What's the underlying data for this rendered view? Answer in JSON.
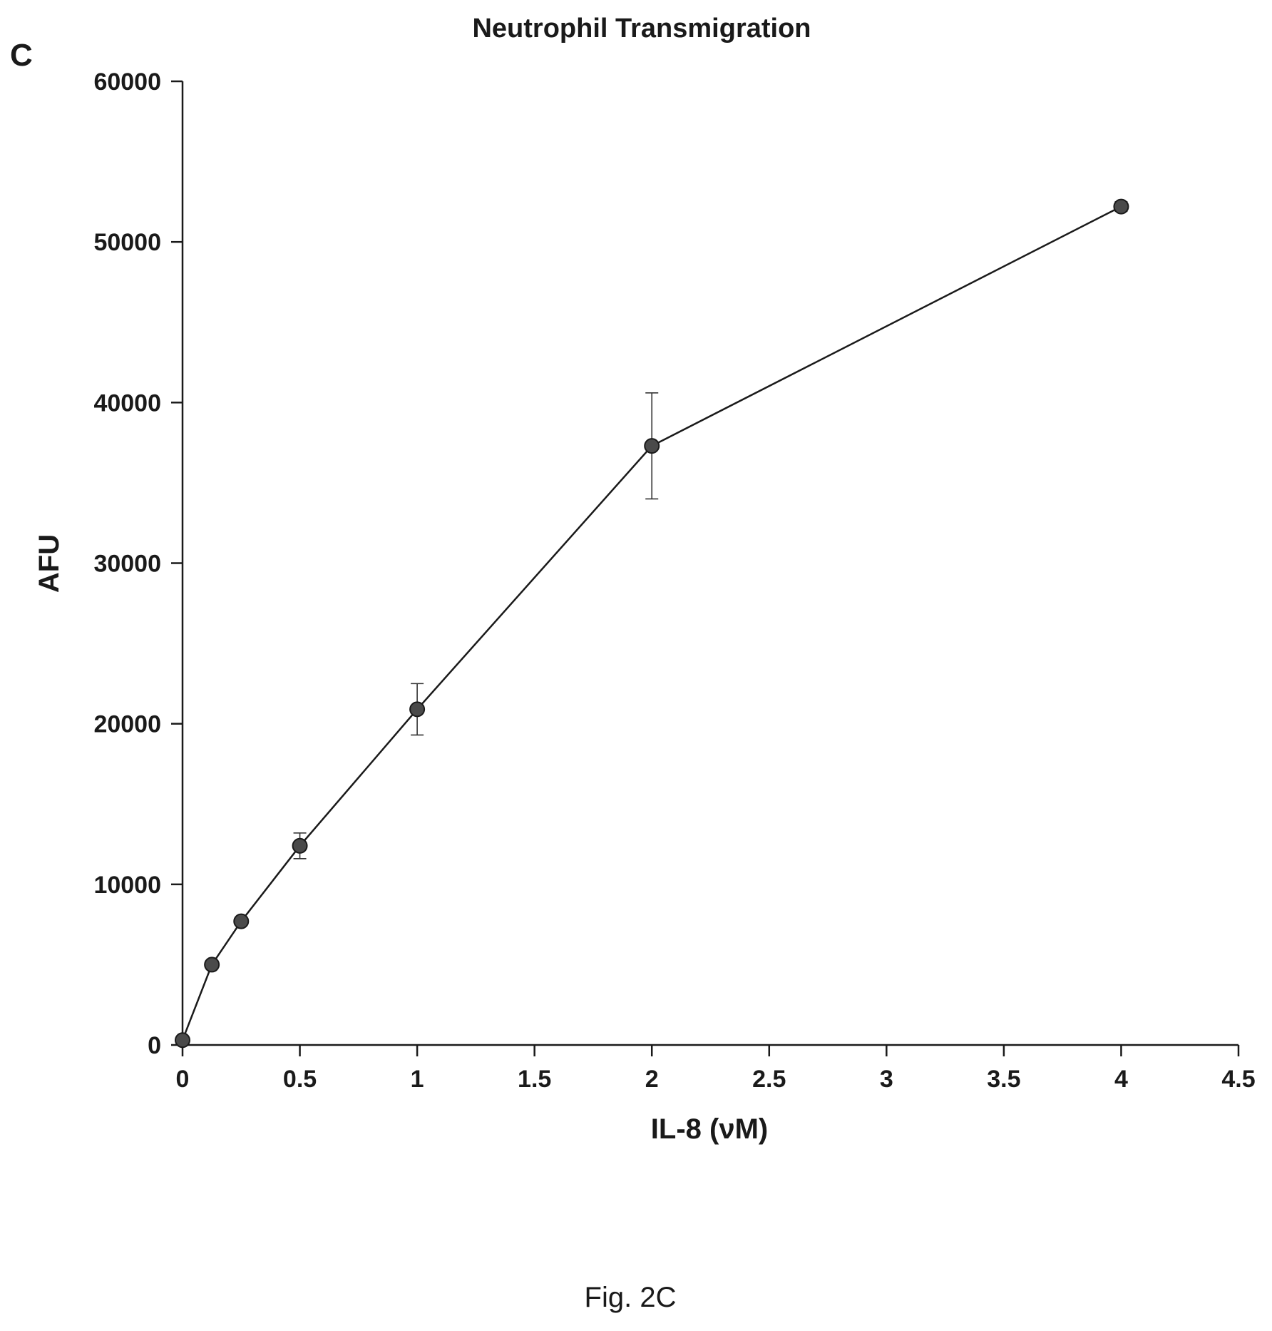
{
  "panel_label": "C",
  "caption": "Fig. 2C",
  "chart_data": {
    "type": "line",
    "title": "Neutrophil Transmigration",
    "xlabel": "IL-8 (νM)",
    "ylabel": "AFU",
    "xlim": [
      0,
      4.5
    ],
    "ylim": [
      0,
      60000
    ],
    "x_ticks": [
      "0",
      "0.5",
      "1",
      "1.5",
      "2",
      "2.5",
      "3",
      "3.5",
      "4",
      "4.5"
    ],
    "y_ticks": [
      "0",
      "10000",
      "20000",
      "30000",
      "40000",
      "50000",
      "60000"
    ],
    "grid": false,
    "legend": "none",
    "series": [
      {
        "x": [
          0,
          0.125,
          0.25,
          0.5,
          1,
          2,
          4
        ],
        "y": [
          300,
          5000,
          7700,
          12400,
          20900,
          37300,
          52200
        ],
        "error": [
          0,
          0,
          0,
          800,
          1600,
          3300,
          300
        ],
        "color": "#4a4a4a"
      }
    ]
  }
}
